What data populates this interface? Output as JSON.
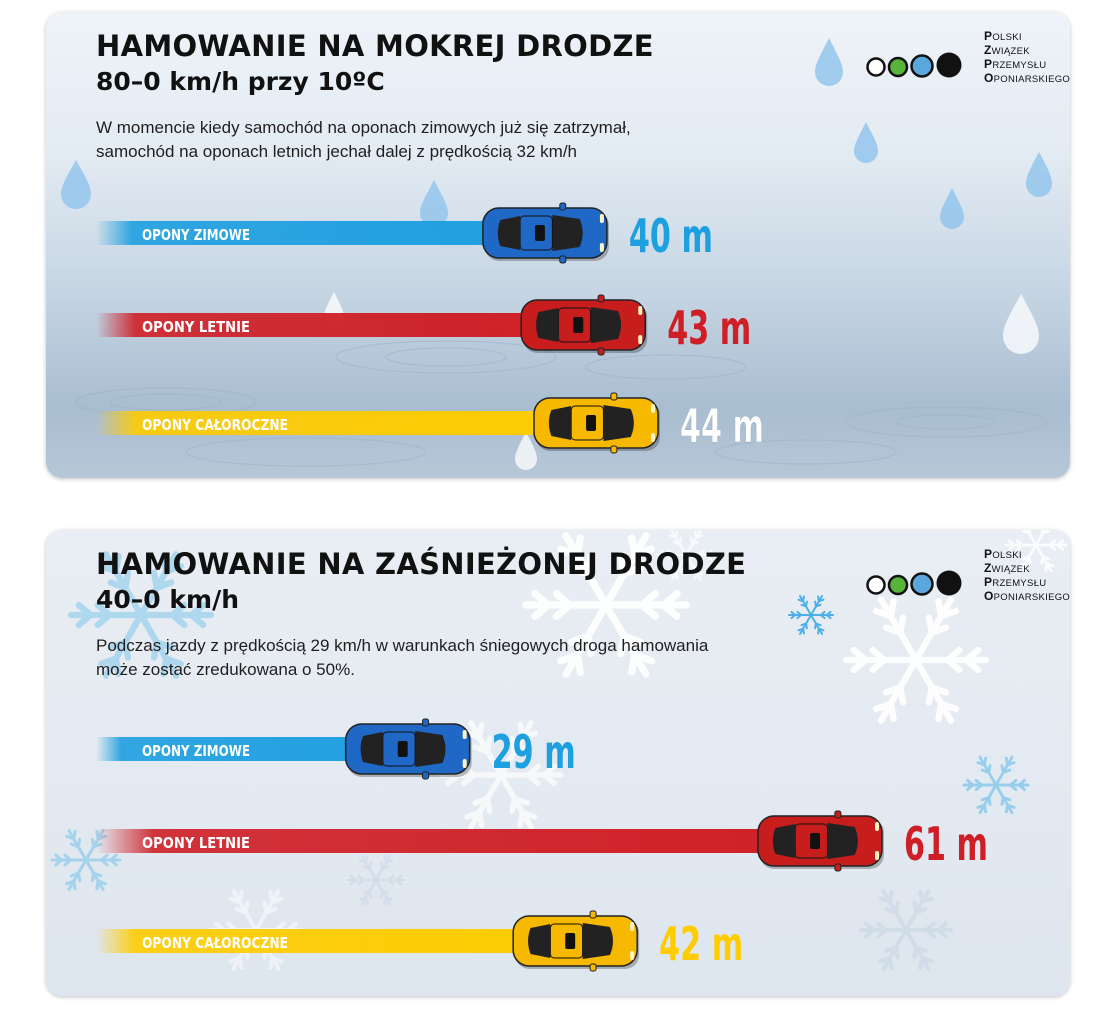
{
  "colors": {
    "winter": "#1e9fe0",
    "summer": "#cf1f26",
    "allseason": "#ffcc00",
    "car_winter": "#1f68c5",
    "car_summer": "#c81d1d",
    "car_allseason": "#f7b800"
  },
  "icons": [
    "raindrop-icon",
    "snowflake-icon",
    "car-icon",
    "pzpo-logo"
  ],
  "logo": {
    "lines": [
      {
        "initial": "P",
        "rest": "OLSKI"
      },
      {
        "initial": "Z",
        "rest": "WIĄZEK"
      },
      {
        "initial": "P",
        "rest": "RZEMYSŁU"
      },
      {
        "initial": "O",
        "rest": "PONIARSKIEGO"
      }
    ]
  },
  "panels": [
    {
      "title": "HAMOWANIE NA MOKREJ DRODZE",
      "subtitle": "80–0 km/h przy 10ºC",
      "description_line1": "W momencie kiedy samochód na oponach zimowych już się zatrzymał,",
      "description_line2": "samochód na oponach letnich jechał dalej z prędkością 32 km/h"
    },
    {
      "title": "HAMOWANIE NA ZAŚNIEŻONEJ DRODZE",
      "subtitle": "40–0 km/h",
      "description_line1": "Podczas jazdy z prędkością 29 km/h w warunkach śniegowych droga hamowania",
      "description_line2": "może zostać zredukowana o 50%."
    }
  ],
  "chart_data": [
    {
      "type": "bar",
      "title": "HAMOWANIE NA MOKREJ DRODZE",
      "subtitle": "80–0 km/h przy 10ºC",
      "categories": [
        "OPONY ZIMOWE",
        "OPONY LETNIE",
        "OPONY CAŁOROCZNE"
      ],
      "values": [
        40,
        43,
        44
      ],
      "value_labels": [
        "40 m",
        "43 m",
        "44 m"
      ],
      "unit": "m",
      "orientation": "horizontal",
      "xlim": [
        0,
        44
      ]
    },
    {
      "type": "bar",
      "title": "HAMOWANIE NA ZAŚNIEŻONEJ DRODZE",
      "subtitle": "40–0 km/h",
      "categories": [
        "OPONY ZIMOWE",
        "OPONY LETNIE",
        "OPONY CAŁOROCZNE"
      ],
      "values": [
        29,
        61,
        42
      ],
      "value_labels": [
        "29 m",
        "61 m",
        "42 m"
      ],
      "unit": "m",
      "orientation": "horizontal",
      "xlim": [
        0,
        61
      ]
    }
  ]
}
